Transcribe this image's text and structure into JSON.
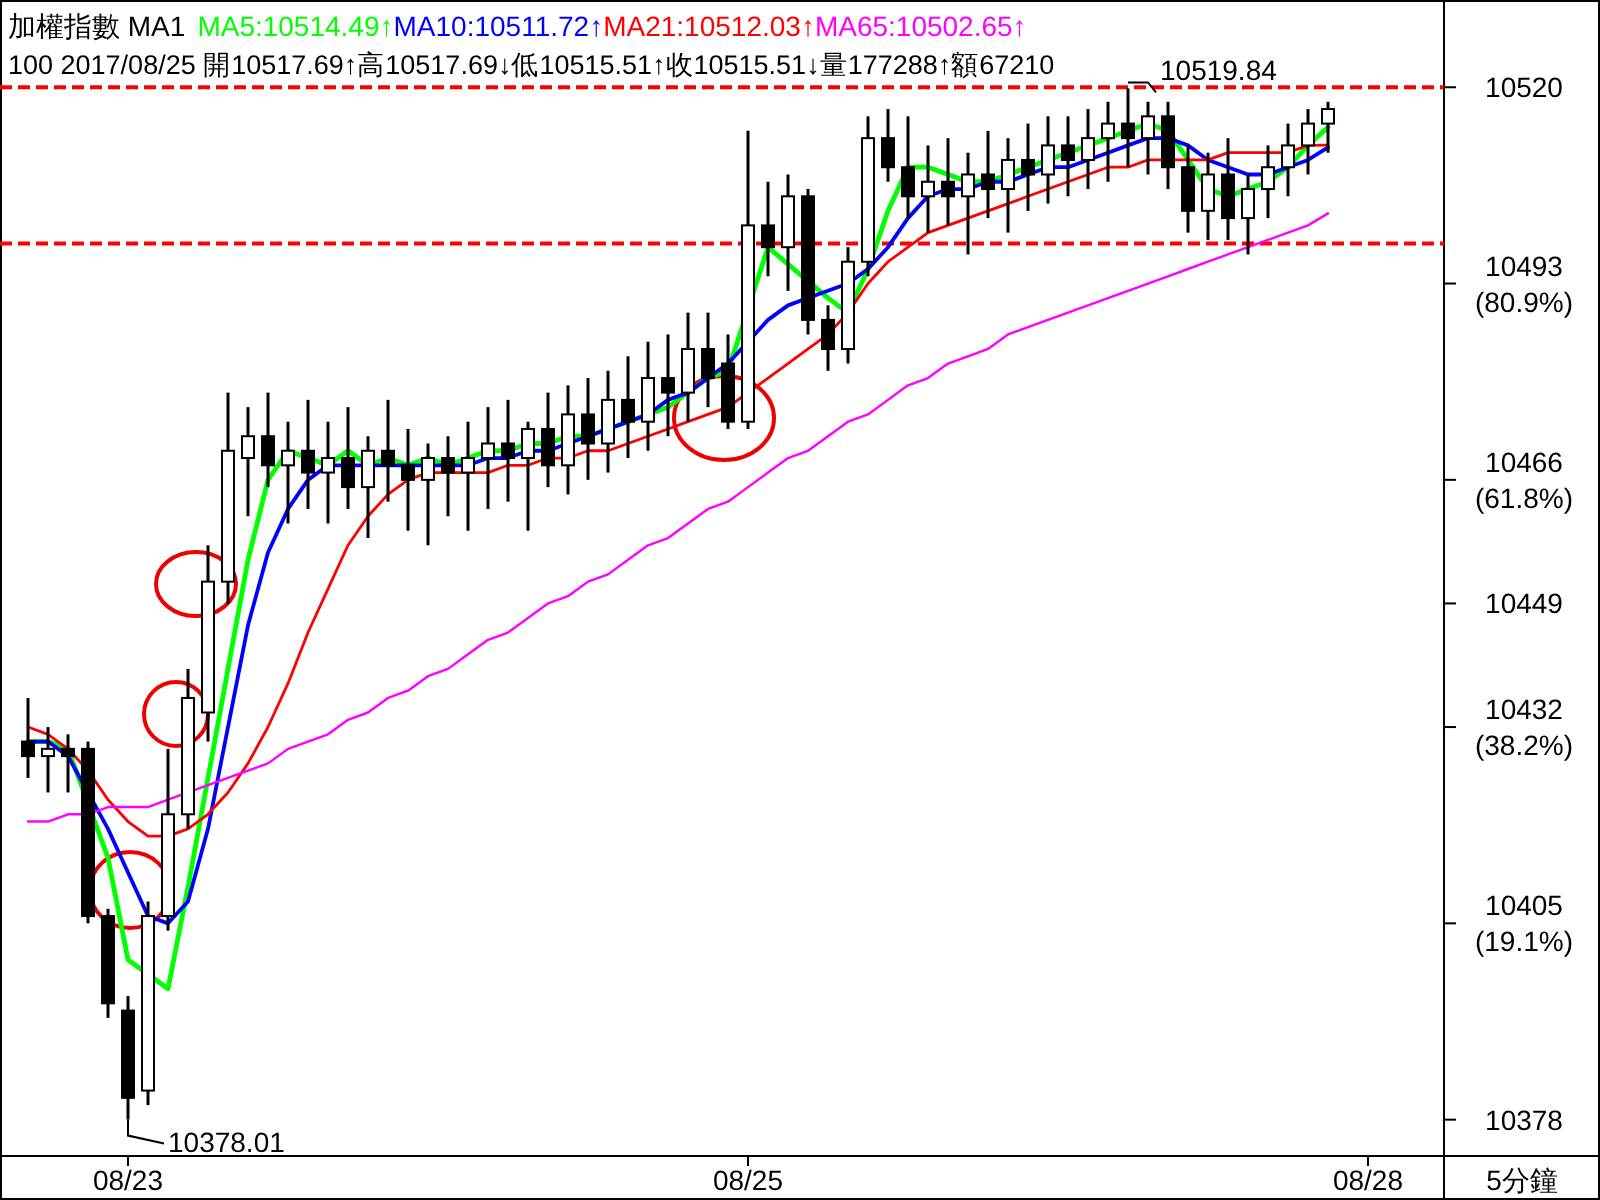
{
  "chart_data": {
    "type": "candlestick",
    "title": "加權指數 MA1",
    "subtitle": "100 2017/08/25 開10517.69↑高10517.69↓低10515.51↑收10515.51↓量177288↑額67210",
    "legend": "top",
    "categories": [
      null,
      null,
      null,
      null,
      null,
      "08/23",
      null,
      null,
      null,
      null,
      null,
      null,
      null,
      null,
      null,
      null,
      null,
      null,
      null,
      null,
      null,
      null,
      null,
      null,
      null,
      null,
      null,
      null,
      null,
      null,
      null,
      null,
      null,
      null,
      null,
      null,
      "08/25",
      null,
      null,
      null,
      null,
      null,
      null,
      null,
      null,
      null,
      null,
      null,
      null,
      null,
      null,
      null,
      null,
      null,
      null,
      null,
      null,
      null,
      null,
      null,
      null,
      null,
      null,
      null,
      null,
      null,
      null,
      "08/28"
    ],
    "ohlc": [
      [
        10430,
        10436,
        10425,
        10428
      ],
      [
        10428,
        10432,
        10423,
        10429
      ],
      [
        10429,
        10431,
        10423,
        10428
      ],
      [
        10429,
        10430,
        10405,
        10406
      ],
      [
        10406,
        10407,
        10392,
        10394
      ],
      [
        10393,
        10395,
        10378.01,
        10381
      ],
      [
        10382,
        10408,
        10380,
        10406
      ],
      [
        10406,
        10429,
        10404,
        10420
      ],
      [
        10420,
        10440,
        10418,
        10436
      ],
      [
        10434,
        10457,
        10430,
        10452
      ],
      [
        10452,
        10478,
        10449,
        10470
      ],
      [
        10469,
        10476,
        10461,
        10472
      ],
      [
        10472,
        10478,
        10465,
        10468
      ],
      [
        10468,
        10474,
        10460,
        10470
      ],
      [
        10470,
        10477,
        10462,
        10467
      ],
      [
        10467,
        10474,
        10460,
        10469
      ],
      [
        10469,
        10476,
        10462,
        10465
      ],
      [
        10465,
        10472,
        10458,
        10470
      ],
      [
        10470,
        10477,
        10463,
        10468
      ],
      [
        10468,
        10473,
        10459,
        10466
      ],
      [
        10466,
        10471,
        10457,
        10469
      ],
      [
        10469,
        10472,
        10461,
        10467
      ],
      [
        10467,
        10474,
        10459,
        10469
      ],
      [
        10469,
        10476,
        10462,
        10471
      ],
      [
        10471,
        10477,
        10463,
        10469
      ],
      [
        10469,
        10474,
        10459,
        10473
      ],
      [
        10473,
        10478,
        10465,
        10468
      ],
      [
        10468,
        10479,
        10464,
        10475
      ],
      [
        10475,
        10480,
        10466,
        10471
      ],
      [
        10471,
        10481,
        10467,
        10477
      ],
      [
        10477,
        10483,
        10469,
        10474
      ],
      [
        10474,
        10485,
        10470,
        10480
      ],
      [
        10480,
        10486,
        10472,
        10478
      ],
      [
        10478,
        10489,
        10474,
        10484
      ],
      [
        10484,
        10489,
        10476,
        10480
      ],
      [
        10482,
        10486,
        10473,
        10474
      ],
      [
        10474,
        10514,
        10473,
        10501
      ],
      [
        10501,
        10507,
        10494,
        10498
      ],
      [
        10498,
        10508,
        10492,
        10505
      ],
      [
        10505,
        10506,
        10486,
        10488
      ],
      [
        10488,
        10490,
        10481,
        10484
      ],
      [
        10484,
        10498,
        10482,
        10496
      ],
      [
        10496,
        10516,
        10494,
        10513
      ],
      [
        10513,
        10517,
        10507,
        10509
      ],
      [
        10509,
        10516,
        10502,
        10505
      ],
      [
        10505,
        10512,
        10500,
        10507
      ],
      [
        10507,
        10513,
        10501,
        10505
      ],
      [
        10505,
        10511,
        10497,
        10508
      ],
      [
        10508,
        10514,
        10502,
        10506
      ],
      [
        10506,
        10513,
        10500,
        10510
      ],
      [
        10510,
        10515,
        10503,
        10508
      ],
      [
        10508,
        10516,
        10504,
        10512
      ],
      [
        10512,
        10516,
        10505,
        10510
      ],
      [
        10510,
        10517,
        10506,
        10513
      ],
      [
        10513,
        10518,
        10507,
        10515
      ],
      [
        10515,
        10519.84,
        10509,
        10513
      ],
      [
        10513,
        10518,
        10508,
        10516
      ],
      [
        10516,
        10518,
        10506,
        10509
      ],
      [
        10509,
        10512,
        10500,
        10503
      ],
      [
        10503,
        10511,
        10499,
        10508
      ],
      [
        10508,
        10513,
        10499,
        10502
      ],
      [
        10502,
        10508,
        10497,
        10506
      ],
      [
        10506,
        10512,
        10502,
        10509
      ],
      [
        10509,
        10515,
        10505,
        10512
      ],
      [
        10512,
        10517,
        10508,
        10515
      ],
      [
        10515,
        10518,
        10511,
        10517
      ],
      null,
      null
    ],
    "series": [
      {
        "name": "MA5:10514.49↑",
        "type": "line",
        "color": "#00ff00",
        "values": [
          10430,
          10430,
          10429,
          null,
          10414,
          10400,
          null,
          10396,
          10410,
          10425,
          10440,
          10455,
          10466,
          10470,
          10469,
          10468,
          10470,
          10468,
          10469,
          10468,
          10469,
          10468,
          10469,
          10470,
          10470,
          10471,
          10471,
          10472,
          10472,
          null,
          10474,
          10475,
          10476,
          10478,
          10480,
          10481,
          null,
          10498,
          null,
          null,
          10491,
          10489,
          10495,
          10503,
          10509,
          10509,
          10508,
          10507,
          10507,
          10508,
          10509,
          10510,
          10511,
          10512,
          10513,
          10514,
          10515,
          10514,
          10510,
          10506,
          10505,
          10506,
          10507,
          10509,
          10512,
          10514.49,
          null,
          null
        ]
      },
      {
        "name": "MA10:10511.72↑",
        "type": "line",
        "color": "#0000ff",
        "values": [
          10430,
          10430,
          10428,
          null,
          10418,
          10412,
          10406,
          10405,
          10408,
          10418,
          10432,
          10446,
          10456,
          10462,
          10466,
          10468,
          10468,
          10468,
          10468,
          10468,
          10468,
          10468,
          10468,
          10469,
          10469,
          10470,
          10470,
          10471,
          10472,
          10473,
          10474,
          10475,
          10477,
          10478,
          10480,
          10482,
          10485,
          10488,
          10490,
          10491,
          10492,
          10493,
          10495,
          10498,
          10502,
          10505,
          10506,
          10506,
          10507,
          10507,
          10508,
          10509,
          10509,
          10510,
          10511,
          10512,
          10513,
          10513,
          10512,
          10510,
          10509,
          10508,
          10508,
          10509,
          10510,
          10511.72,
          null,
          null
        ]
      },
      {
        "name": "MA21:10512.03↑",
        "type": "line",
        "color": "#ff0000",
        "values": [
          10432,
          10431,
          10429,
          10426,
          10422,
          10419,
          10417,
          10417,
          10418,
          10420,
          10423,
          10427,
          10432,
          10438,
          10445,
          10451,
          10457,
          10461,
          10464,
          10466,
          10467,
          10467,
          10467,
          10467,
          10468,
          10468,
          10469,
          10469,
          10470,
          10470,
          10471,
          10472,
          10473,
          10474,
          10475,
          10476,
          10478,
          10480,
          10482,
          10484,
          10486,
          10489,
          10493,
          10496,
          10498,
          10500,
          10501,
          10502,
          10503,
          10504,
          10505,
          10506,
          10507,
          10508,
          10509,
          10509,
          10510,
          10510,
          10510,
          10510,
          10511,
          10511,
          10511,
          10511,
          10512,
          10512.03,
          null,
          null
        ]
      },
      {
        "name": "MA65:10502.65↑",
        "type": "line",
        "color": "#ff00ff",
        "values": [
          10419,
          10419,
          10420,
          10420,
          10421,
          10421,
          10421,
          10422,
          10423,
          10424,
          10425,
          10426,
          10427,
          10429,
          10430,
          10431,
          10433,
          10434,
          10436,
          10437,
          10439,
          10440,
          10442,
          10444,
          10445,
          10447,
          10449,
          10450,
          10452,
          10453,
          10455,
          10457,
          10458,
          10460,
          10462,
          10463,
          10465,
          10467,
          10469,
          10470,
          10472,
          10474,
          10475,
          10477,
          10479,
          10480,
          10482,
          10483,
          10484,
          10486,
          10487,
          10488,
          10489,
          10490,
          10491,
          10492,
          10493,
          10494,
          10495,
          10496,
          10497,
          10498,
          10499,
          10500,
          10501,
          10502.65,
          null,
          null
        ]
      }
    ],
    "ylim": [
      10373,
      10532
    ],
    "yticks": [
      10520,
      {
        "value": 10493,
        "label": "10493\n(80.9%)"
      },
      {
        "value": 10466,
        "label": "10466\n(61.8%)"
      },
      10449,
      {
        "value": 10432,
        "label": "10432\n(38.2%)"
      },
      {
        "value": 10405,
        "label": "10405\n(19.1%)"
      },
      10378
    ],
    "ref_lines": [
      {
        "axis": "y",
        "value": 10520,
        "color": "#ff0000",
        "line_style": "dashed"
      },
      {
        "axis": "y",
        "value": 10498.5,
        "color": "#ff0000",
        "line_style": "dashed"
      }
    ],
    "annotations": [
      {
        "text": "10519.84",
        "y": 10519.84
      },
      {
        "text": "10378.01",
        "x": "08/23",
        "y": 10378.01
      }
    ],
    "xlabel": "5分鐘"
  }
}
